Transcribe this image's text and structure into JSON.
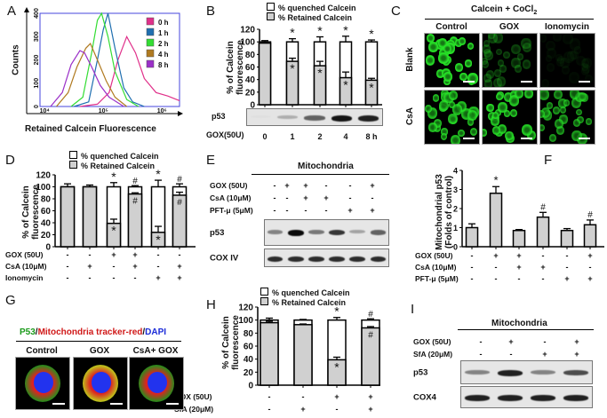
{
  "panels": {
    "A": "A",
    "B": "B",
    "C": "C",
    "D": "D",
    "E": "E",
    "F": "F",
    "G": "G",
    "H": "H",
    "I": "I"
  },
  "legend_calcein": {
    "quenched": "% quenched Calcein",
    "retained": "% Retained   Calcein"
  },
  "ylabel_calcein": [
    "% of Calcein",
    "fluorescence"
  ],
  "colors": {
    "retained": "#d0d0d0",
    "quenched": "#ffffff",
    "calcein_green": "#22dd22",
    "mito_red": "#dd2222",
    "dapi_blue": "#2233ee"
  },
  "chart_data": [
    {
      "panel": "A",
      "type": "line",
      "xlabel": "Retained Calcein Fluorescence",
      "ylabel": "Counts",
      "xscale": "log",
      "xticks": [
        "10⁴",
        "10⁵",
        "10⁶"
      ],
      "yticks": [
        "0",
        "100",
        "200",
        "300",
        "400"
      ],
      "ylim": [
        0,
        400
      ],
      "legend_position": "top-right",
      "series": [
        {
          "name": "0 h",
          "color": "#e0308a",
          "log10x": [
            4.6,
            4.9,
            5.1,
            5.25,
            5.4,
            5.55,
            5.7,
            5.9,
            6.1,
            6.3
          ],
          "counts": [
            0,
            10,
            60,
            200,
            300,
            230,
            120,
            60,
            45,
            25
          ]
        },
        {
          "name": "1 h",
          "color": "#1f6fb0",
          "log10x": [
            4.5,
            4.75,
            4.9,
            5.0,
            5.08,
            5.2,
            5.35,
            5.5,
            5.7
          ],
          "counts": [
            0,
            20,
            200,
            330,
            400,
            250,
            80,
            20,
            0
          ]
        },
        {
          "name": "2 h",
          "color": "#33dd33",
          "log10x": [
            4.45,
            4.65,
            4.8,
            4.9,
            4.97,
            5.08,
            5.2,
            5.4,
            5.6
          ],
          "counts": [
            0,
            40,
            230,
            370,
            400,
            300,
            150,
            30,
            0
          ]
        },
        {
          "name": "4 h",
          "color": "#b07a20",
          "log10x": [
            4.2,
            4.4,
            4.55,
            4.7,
            4.78,
            4.9,
            5.05,
            5.2,
            5.4
          ],
          "counts": [
            0,
            60,
            170,
            250,
            270,
            200,
            110,
            40,
            0
          ]
        },
        {
          "name": "8 h",
          "color": "#9b30c8",
          "log10x": [
            4.1,
            4.3,
            4.45,
            4.6,
            4.68,
            4.8,
            4.95,
            5.1,
            5.35
          ],
          "counts": [
            0,
            60,
            180,
            240,
            230,
            170,
            90,
            40,
            0
          ]
        }
      ]
    },
    {
      "panel": "B",
      "type": "bar",
      "stacked": true,
      "ylim": [
        0,
        120
      ],
      "yticks": [
        "0",
        "20",
        "40",
        "60",
        "80",
        "100",
        "120"
      ],
      "treatment": "GOX(50U)",
      "categories": [
        "0",
        "1",
        "2",
        "4",
        "8 h"
      ],
      "retained": [
        98,
        69,
        62,
        43,
        39
      ],
      "retained_err": [
        2,
        5,
        7,
        9,
        3
      ],
      "total": [
        100,
        100,
        100,
        100,
        100
      ],
      "total_err": [
        2,
        5,
        8,
        9,
        3
      ],
      "top_marks": [
        "",
        "*",
        "*",
        "*",
        "*"
      ],
      "bottom_marks": [
        "",
        "*",
        "*",
        "*",
        "*"
      ]
    },
    {
      "panel": "D",
      "type": "bar",
      "stacked": true,
      "ylim": [
        0,
        120
      ],
      "yticks": [
        "0",
        "20",
        "40",
        "60",
        "80",
        "100",
        "120"
      ],
      "conditions": [
        {
          "label": "GOX (50U)",
          "values": [
            "-",
            "-",
            "+",
            "+",
            "-",
            "-"
          ]
        },
        {
          "label": "CsA (10μM)",
          "values": [
            "-",
            "+",
            "-",
            "+",
            "-",
            "+"
          ]
        },
        {
          "label": "Ionomycin",
          "values": [
            "-",
            "-",
            "-",
            "-",
            "+",
            "+"
          ]
        }
      ],
      "retained": [
        100,
        100,
        39,
        88,
        24,
        86
      ],
      "retained_err": [
        0,
        0,
        7,
        2,
        10,
        5
      ],
      "total": [
        100,
        100,
        100,
        100,
        100,
        100
      ],
      "total_err": [
        5,
        3,
        7,
        2,
        11,
        5
      ],
      "top_marks": [
        "",
        "",
        "*",
        "#",
        "*",
        "#"
      ],
      "bottom_marks": [
        "",
        "",
        "*",
        "#",
        "*",
        "#"
      ]
    },
    {
      "panel": "F",
      "type": "bar",
      "ylabel": [
        "Mitochondrial p53",
        "(Folds of control)"
      ],
      "ylim": [
        0,
        4
      ],
      "yticks": [
        "0",
        "1",
        "2",
        "3",
        "4"
      ],
      "conditions": [
        {
          "label": "GOX (50U)",
          "values": [
            "-",
            "+",
            "+",
            "-",
            "-",
            "+"
          ]
        },
        {
          "label": "CsA (10μM)",
          "values": [
            "-",
            "-",
            "+",
            "+",
            "-",
            "-"
          ]
        },
        {
          "label": "PFT-μ (5μM)",
          "values": [
            "-",
            "-",
            "-",
            "-",
            "+",
            "+"
          ]
        }
      ],
      "values": [
        1.0,
        2.8,
        0.85,
        1.55,
        0.85,
        1.15
      ],
      "err": [
        0.2,
        0.35,
        0.05,
        0.25,
        0.1,
        0.25
      ],
      "marks": [
        "",
        "*",
        "",
        "#",
        "",
        "#"
      ]
    },
    {
      "panel": "H",
      "type": "bar",
      "stacked": true,
      "ylim": [
        0,
        120
      ],
      "yticks": [
        "0",
        "20",
        "40",
        "60",
        "80",
        "100",
        "120"
      ],
      "conditions": [
        {
          "label": "GOX (50U)",
          "values": [
            "-",
            "-",
            "+",
            "+"
          ]
        },
        {
          "label": "SfA (20μM)",
          "values": [
            "-",
            "+",
            "-",
            "+"
          ]
        }
      ],
      "retained": [
        96,
        93,
        39,
        88
      ],
      "retained_err": [
        2,
        1,
        4,
        2
      ],
      "total": [
        100,
        100,
        100,
        100
      ],
      "total_err": [
        3,
        1,
        4,
        2
      ],
      "top_marks": [
        "",
        "",
        "*",
        "#"
      ],
      "bottom_marks": [
        "",
        "",
        "*",
        "#"
      ]
    }
  ],
  "B": {
    "blot_label": "p53",
    "band_intensity": [
      0.02,
      0.25,
      0.6,
      0.95,
      0.9
    ]
  },
  "C": {
    "title": "Calcein + CoCl",
    "title_sub": "2",
    "columns": [
      "Control",
      "GOX",
      "Ionomycin"
    ],
    "rows": [
      "Blank",
      "CsA"
    ],
    "brightness": [
      [
        1.0,
        0.3,
        0.05
      ],
      [
        0.85,
        0.9,
        0.7
      ]
    ]
  },
  "E": {
    "title": "Mitochondria",
    "blots": [
      {
        "label": "p53",
        "bands": [
          0.45,
          1.0,
          0.5,
          0.8,
          0.3,
          0.6
        ]
      },
      {
        "label": "COX IV",
        "bands": [
          0.85,
          0.85,
          0.85,
          0.85,
          0.85,
          0.85
        ]
      }
    ],
    "conditions": [
      {
        "label": "GOX (50U)",
        "values": [
          "-",
          "+",
          "+",
          "-",
          "-",
          "+"
        ]
      },
      {
        "label": "CsA (10μM)",
        "values": [
          "-",
          "-",
          "+",
          "+",
          "-",
          "-"
        ]
      },
      {
        "label": "PFT-μ (5μM)",
        "values": [
          "-",
          "-",
          "-",
          "-",
          "+",
          "+"
        ]
      }
    ]
  },
  "G": {
    "title_parts": [
      "P53",
      "/",
      "Mitochondria tracker-red",
      "/",
      "DAPI"
    ],
    "columns": [
      "Control",
      "GOX",
      "CsA+ GOX"
    ]
  },
  "I": {
    "title": "Mitochondria",
    "blots": [
      {
        "label": "p53",
        "bands": [
          0.45,
          0.9,
          0.45,
          0.7
        ]
      },
      {
        "label": "COX4",
        "bands": [
          0.9,
          0.9,
          0.9,
          0.9
        ]
      }
    ],
    "conditions": [
      {
        "label": "GOX (50U)",
        "values": [
          "-",
          "+",
          "-",
          "+"
        ]
      },
      {
        "label": "SfA (20μM)",
        "values": [
          "-",
          "-",
          "+",
          "+"
        ]
      }
    ]
  }
}
